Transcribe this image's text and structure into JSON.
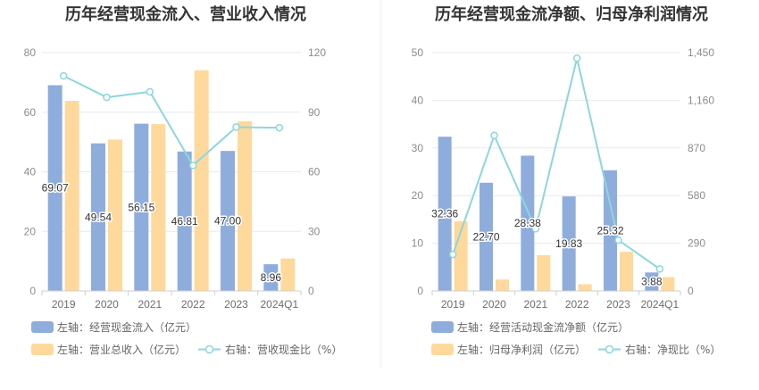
{
  "chart_data": [
    {
      "type": "bar",
      "title": "历年经营现金流入、营业收入情况",
      "categories": [
        "2019",
        "2020",
        "2021",
        "2022",
        "2023",
        "2024Q1"
      ],
      "y_left": {
        "min": 0,
        "max": 80,
        "ticks": [
          0,
          20,
          40,
          60,
          80
        ]
      },
      "y_right": {
        "min": 0,
        "max": 120,
        "ticks": [
          0,
          30,
          60,
          90,
          120
        ]
      },
      "series": [
        {
          "name": "左轴：经营现金流入（亿元）",
          "color": "#8eaddc",
          "values": [
            69.07,
            49.54,
            56.15,
            46.81,
            47.0,
            8.96
          ],
          "data_labels": [
            "69.07",
            "49.54",
            "56.15",
            "46.81",
            "47.00",
            "8.96"
          ]
        },
        {
          "name": "左轴：营业总收入（亿元）",
          "color": "#ffd89b",
          "values": [
            63.8,
            50.8,
            56.0,
            74.1,
            57.0,
            10.9
          ]
        }
      ],
      "line_series": {
        "name": "右轴：营收现金比（%）",
        "color": "#8cd7dc",
        "values": [
          108.3,
          97.5,
          100.3,
          63.2,
          82.5,
          82.2
        ]
      }
    },
    {
      "type": "bar",
      "title": "历年经营现金流净额、归母净利润情况",
      "categories": [
        "2019",
        "2020",
        "2021",
        "2022",
        "2023",
        "2024Q1"
      ],
      "y_left": {
        "min": 0,
        "max": 50,
        "ticks": [
          0,
          10,
          20,
          30,
          40,
          50
        ]
      },
      "y_right": {
        "min": 0,
        "max": 1450,
        "ticks": [
          0,
          290,
          580,
          870,
          1160,
          1450
        ]
      },
      "series": [
        {
          "name": "左轴：经营活动现金流净额（亿元）",
          "color": "#8eaddc",
          "values": [
            32.36,
            22.7,
            28.38,
            19.83,
            25.32,
            3.88
          ],
          "data_labels": [
            "32.36",
            "22.70",
            "28.38",
            "19.83",
            "25.32",
            "3.88"
          ]
        },
        {
          "name": "左轴：归母净利润（亿元）",
          "color": "#ffd89b",
          "values": [
            14.6,
            2.4,
            7.5,
            1.4,
            8.2,
            2.9
          ]
        }
      ],
      "line_series": {
        "name": "右轴：净现比（%）",
        "color": "#8cd7dc",
        "values": [
          222,
          946,
          378,
          1416,
          309,
          134
        ]
      }
    }
  ]
}
